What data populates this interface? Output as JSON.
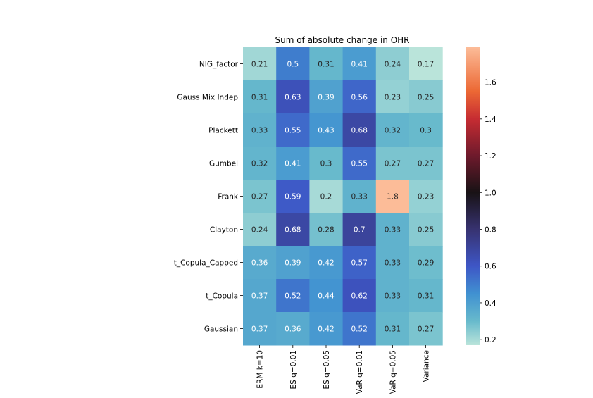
{
  "chart_data": {
    "type": "heatmap",
    "title": "Sum of absolute change in OHR",
    "xlabel": "",
    "ylabel": "",
    "rows": [
      "NIG_factor",
      "Gauss Mix Indep",
      "Plackett",
      "Gumbel",
      "Frank",
      "Clayton",
      "t_Copula_Capped",
      "t_Copula",
      "Gaussian"
    ],
    "columns": [
      "ERM k=10",
      "ES q=0.01",
      "ES q=0.05",
      "VaR q=0.01",
      "VaR q=0.05",
      "Variance"
    ],
    "values": [
      [
        0.21,
        0.5,
        0.31,
        0.41,
        0.24,
        0.17
      ],
      [
        0.31,
        0.63,
        0.39,
        0.56,
        0.23,
        0.25
      ],
      [
        0.33,
        0.55,
        0.43,
        0.68,
        0.32,
        0.3
      ],
      [
        0.32,
        0.41,
        0.3,
        0.55,
        0.27,
        0.27
      ],
      [
        0.27,
        0.59,
        0.2,
        0.33,
        1.8,
        0.23
      ],
      [
        0.24,
        0.68,
        0.28,
        0.7,
        0.33,
        0.25
      ],
      [
        0.36,
        0.39,
        0.42,
        0.57,
        0.33,
        0.29
      ],
      [
        0.37,
        0.52,
        0.44,
        0.62,
        0.33,
        0.31
      ],
      [
        0.37,
        0.36,
        0.42,
        0.52,
        0.31,
        0.27
      ]
    ],
    "annotations": true,
    "colormap": "icefire",
    "center": 1.0,
    "colorbar": {
      "range": [
        0.17,
        1.79
      ],
      "ticks": [
        0.2,
        0.4,
        0.6,
        0.8,
        1.0,
        1.2,
        1.4,
        1.6
      ],
      "tick_labels": [
        "0.2",
        "0.4",
        "0.6",
        "0.8",
        "1.0",
        "1.2",
        "1.4",
        "1.6"
      ]
    },
    "grid": false,
    "legend": "colorbar-right"
  }
}
